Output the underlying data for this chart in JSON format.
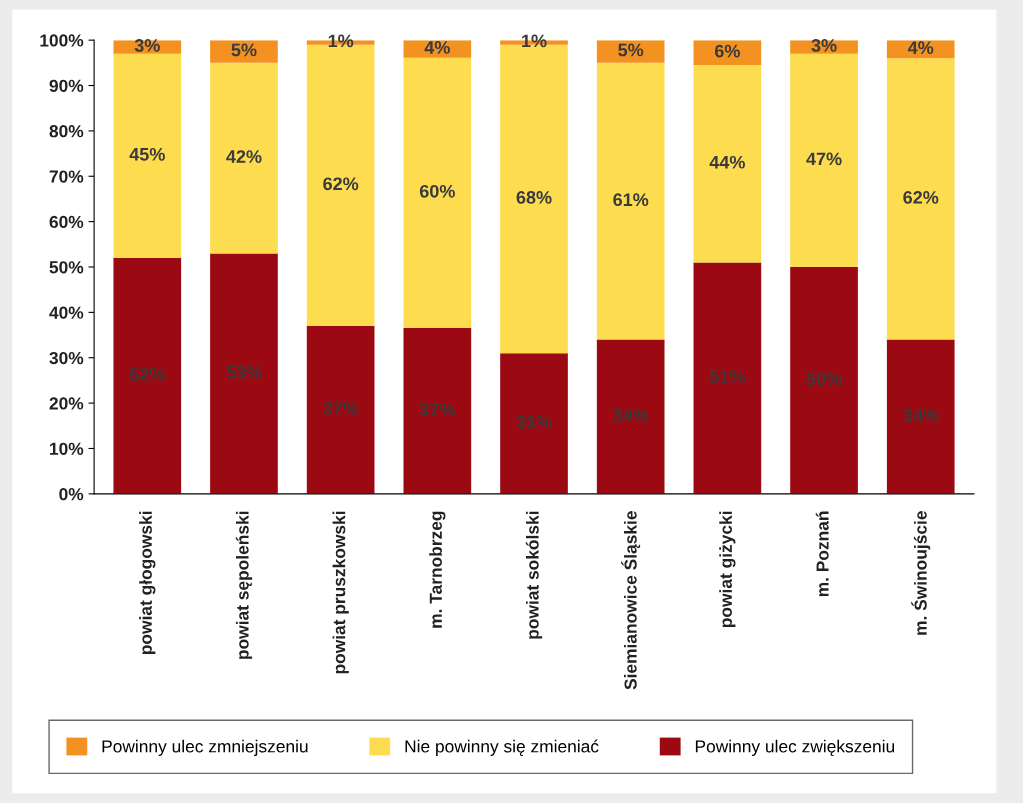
{
  "chart_data": {
    "type": "bar",
    "stacked": true,
    "categories": [
      "powiat głogowski",
      "powiat sępoleński",
      "powiat pruszkowski",
      "m. Tarnobrzeg",
      "powiat sokólski",
      "Siemianowice Śląskie",
      "powiat giżycki",
      "m. Poznań",
      "m. Świnoujście"
    ],
    "series": [
      {
        "name": "Powinny ulec zwiększeniu",
        "color": "#9b0a12",
        "values": [
          52,
          53,
          37,
          36.6,
          31,
          34,
          51,
          50,
          34
        ],
        "value_labels": [
          "52%",
          "53%",
          "37%",
          "37%",
          "31%",
          "34%",
          "51%",
          "50%",
          "34%"
        ]
      },
      {
        "name": "Nie powinny się zmieniać",
        "color": "#fddc50",
        "values": [
          45,
          42,
          62,
          59.5,
          68,
          61,
          43.5,
          47,
          62
        ],
        "value_labels": [
          "45%",
          "42%",
          "62%",
          "60%",
          "68%",
          "61%",
          "44%",
          "47%",
          "62%"
        ]
      },
      {
        "name": "Powinny ulec zmniejszeniu",
        "color": "#f39221",
        "values": [
          3,
          5,
          1,
          3.9,
          1,
          5,
          5.5,
          3,
          4
        ],
        "value_labels": [
          "3%",
          "5%",
          "1%",
          "4%",
          "1%",
          "5%",
          "6%",
          "3%",
          "4%"
        ]
      }
    ],
    "ylim": [
      0,
      100
    ],
    "yticks": [
      {
        "value": 0,
        "label": "0%"
      },
      {
        "value": 10,
        "label": "10%"
      },
      {
        "value": 20,
        "label": "20%"
      },
      {
        "value": 30,
        "label": "30%"
      },
      {
        "value": 40,
        "label": "40%"
      },
      {
        "value": 50,
        "label": "50%"
      },
      {
        "value": 60,
        "label": "60%"
      },
      {
        "value": 70,
        "label": "70%"
      },
      {
        "value": 80,
        "label": "80%"
      },
      {
        "value": 90,
        "label": "90%"
      },
      {
        "value": 100,
        "label": "100%"
      }
    ],
    "legend": "bottom",
    "grid": false
  }
}
